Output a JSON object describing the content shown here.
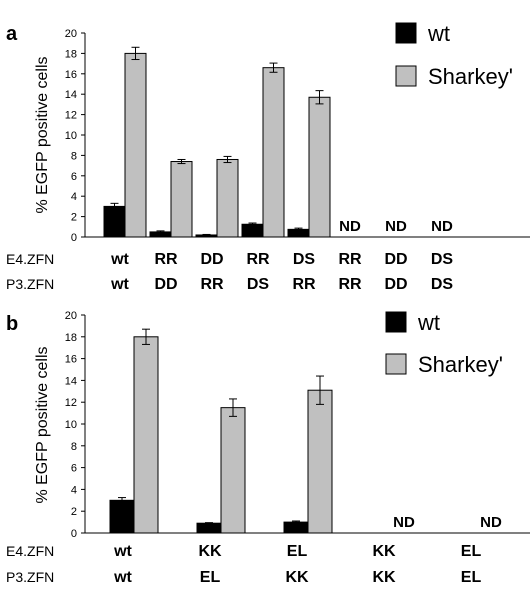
{
  "chart_data": [
    {
      "type": "bar",
      "panel_label": "a",
      "ylabel": "% EGFP positive cells",
      "ylim": [
        0,
        20
      ],
      "yticks": [
        0,
        2,
        4,
        6,
        8,
        10,
        12,
        14,
        16,
        18,
        20
      ],
      "series": [
        {
          "name": "wt",
          "color": "#000000",
          "values": [
            3.0,
            0.5,
            0.2,
            1.25,
            0.75,
            null,
            null,
            null
          ],
          "errors": [
            0.3,
            0.1,
            0.05,
            0.12,
            0.12,
            null,
            null,
            null
          ]
        },
        {
          "name": "Sharkey'",
          "color": "#c0c0c0",
          "values": [
            18.0,
            7.4,
            7.6,
            16.6,
            13.7,
            null,
            null,
            null
          ],
          "errors": [
            0.6,
            0.2,
            0.3,
            0.45,
            0.65,
            null,
            null,
            null
          ]
        }
      ],
      "nd_marks": [
        false,
        false,
        false,
        false,
        false,
        true,
        true,
        true
      ],
      "nd_text": "ND",
      "row_labels": [
        "E4.ZFN",
        "P3.ZFN"
      ],
      "categories_e4": [
        "wt",
        "RR",
        "DD",
        "RR",
        "DS",
        "RR",
        "DD",
        "DS"
      ],
      "categories_p3": [
        "wt",
        "DD",
        "RR",
        "DS",
        "RR",
        "RR",
        "DD",
        "DS"
      ],
      "legend_position": "top-right",
      "grid": false
    },
    {
      "type": "bar",
      "panel_label": "b",
      "ylabel": "% EGFP positive cells",
      "ylim": [
        0,
        20
      ],
      "yticks": [
        0,
        2,
        4,
        6,
        8,
        10,
        12,
        14,
        16,
        18,
        20
      ],
      "series": [
        {
          "name": "wt",
          "color": "#000000",
          "values": [
            3.0,
            0.9,
            1.0,
            null,
            null
          ],
          "errors": [
            0.25,
            0.05,
            0.1,
            null,
            null
          ]
        },
        {
          "name": "Sharkey'",
          "color": "#c0c0c0",
          "values": [
            18.0,
            11.5,
            13.1,
            null,
            null
          ],
          "errors": [
            0.7,
            0.8,
            1.3,
            null,
            null
          ]
        }
      ],
      "nd_marks": [
        false,
        false,
        false,
        true,
        true
      ],
      "nd_text": "ND",
      "row_labels": [
        "E4.ZFN",
        "P3.ZFN"
      ],
      "categories_e4": [
        "wt",
        "KK",
        "EL",
        "KK",
        "EL"
      ],
      "categories_p3": [
        "wt",
        "EL",
        "KK",
        "KK",
        "EL"
      ],
      "legend_position": "top-right",
      "grid": false
    }
  ]
}
